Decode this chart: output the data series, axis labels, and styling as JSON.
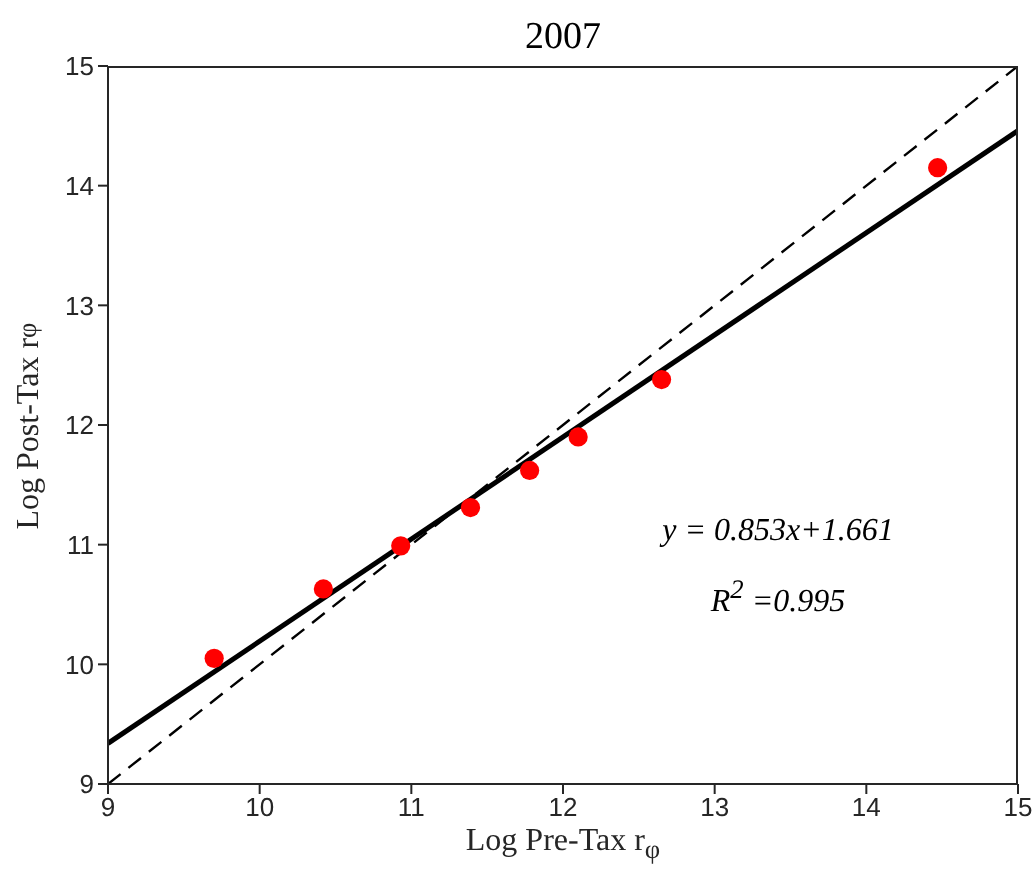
{
  "chart_data": {
    "type": "scatter",
    "title": "2007",
    "xlabel": "Log Pre-Tax r$_{φ}$",
    "ylabel": "Log Post-Tax r$_{φ}$",
    "xlim": [
      9,
      15
    ],
    "ylim": [
      9,
      15
    ],
    "xticks": [
      9,
      10,
      11,
      12,
      13,
      14,
      15
    ],
    "yticks": [
      9,
      10,
      11,
      12,
      13,
      14,
      15
    ],
    "annotations": [
      "y = 0.853x+1.661",
      "R$^{2}$ =0.995"
    ],
    "series": [
      {
        "type": "scatter",
        "color": "#ff0000",
        "marker": "circle",
        "x": [
          9.7,
          10.42,
          10.93,
          11.39,
          11.78,
          12.1,
          12.65,
          14.47
        ],
        "values": [
          10.05,
          10.63,
          10.99,
          11.31,
          11.62,
          11.9,
          12.38,
          14.15
        ]
      },
      {
        "type": "line",
        "color": "#000000",
        "marker": "none",
        "line_style": "solid",
        "x": [
          9,
          15
        ],
        "values": [
          9.34,
          14.46
        ]
      },
      {
        "type": "line",
        "color": "#000000",
        "marker": "none",
        "line_style": "dashed",
        "x": [
          9,
          15
        ],
        "values": [
          9,
          15
        ]
      }
    ]
  }
}
